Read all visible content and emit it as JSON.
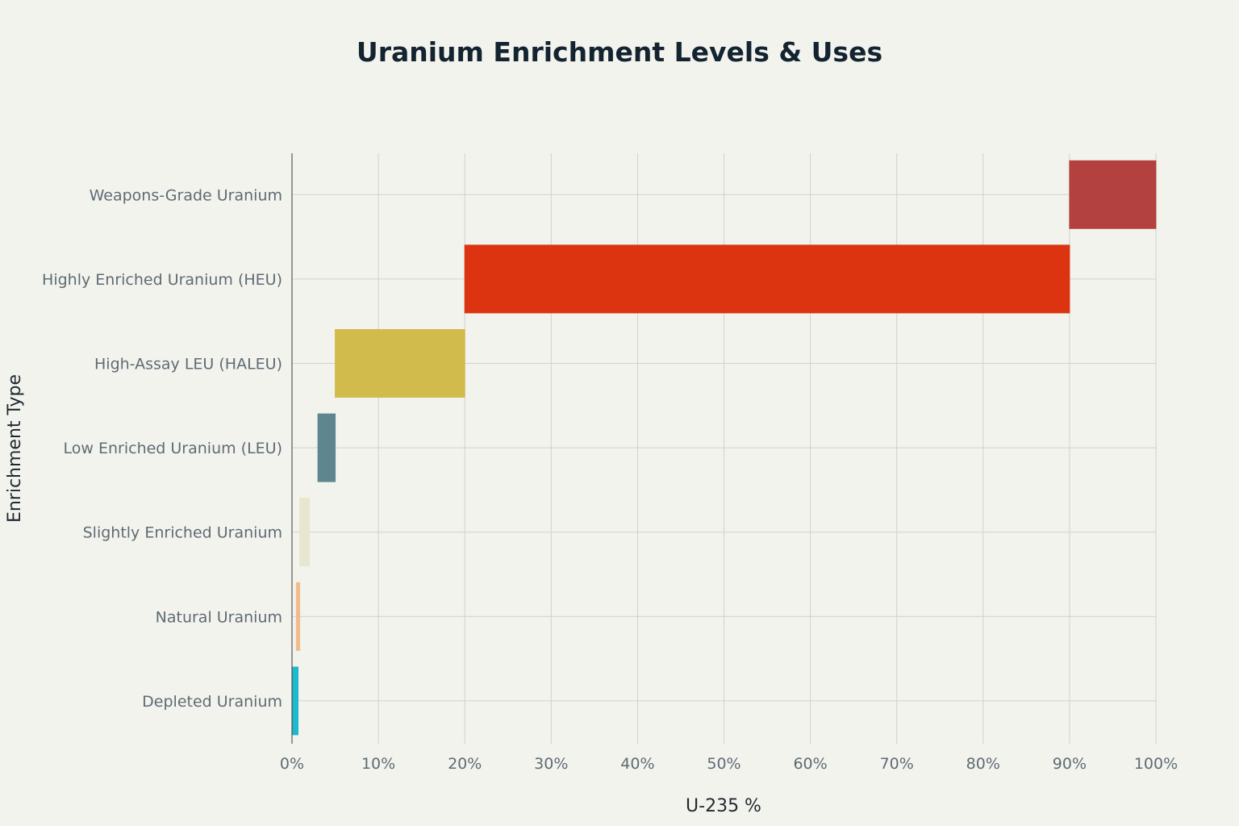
{
  "chart_data": {
    "type": "bar",
    "orientation": "horizontal",
    "title": "Uranium Enrichment Levels & Uses",
    "xlabel": "U-235 %",
    "ylabel": "Enrichment Type",
    "xlim": [
      0,
      100
    ],
    "xticks": [
      0,
      10,
      20,
      30,
      40,
      50,
      60,
      70,
      80,
      90,
      100
    ],
    "tick_suffix": "%",
    "grid": true,
    "legend": "none",
    "categories": [
      "Weapons-Grade Uranium",
      "Highly Enriched Uranium (HEU)",
      "High-Assay LEU (HALEU)",
      "Low Enriched Uranium (LEU)",
      "Slightly Enriched Uranium",
      "Natural Uranium",
      "Depleted Uranium"
    ],
    "ranges": [
      {
        "min": 90,
        "max": 100,
        "color": "#b3413f"
      },
      {
        "min": 20,
        "max": 90,
        "color": "#dc3311"
      },
      {
        "min": 5,
        "max": 20,
        "color": "#d1bb4d"
      },
      {
        "min": 3,
        "max": 5,
        "color": "#5f868e"
      },
      {
        "min": 0.9,
        "max": 2,
        "color": "#e8e6cf"
      },
      {
        "min": 0.5,
        "max": 0.9,
        "color": "#efbc8d"
      },
      {
        "min": 0,
        "max": 0.7,
        "color": "#1fb8cc"
      }
    ]
  }
}
